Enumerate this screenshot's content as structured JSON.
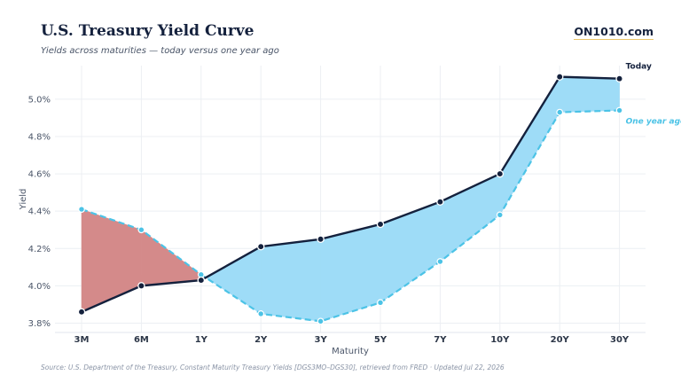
{
  "header": {
    "title": "U.S. Treasury Yield Curve",
    "subtitle": "Yields across maturities — today versus one year ago",
    "brand": "ON1010.com"
  },
  "footer": {
    "source": "Source: U.S. Department of the Treasury, Constant Maturity Treasury Yields [DGS3MO–DGS30], retrieved from FRED · Updated Jul 22, 2026"
  },
  "chart_data": {
    "type": "line",
    "xlabel": "Maturity",
    "ylabel": "Yield",
    "categories": [
      "3M",
      "6M",
      "1Y",
      "2Y",
      "3Y",
      "5Y",
      "7Y",
      "10Y",
      "20Y",
      "30Y"
    ],
    "yticks": [
      "3.8%",
      "4.0%",
      "4.2%",
      "4.4%",
      "4.6%",
      "4.8%",
      "5.0%"
    ],
    "ylim": [
      3.75,
      5.18
    ],
    "grid": true,
    "series": [
      {
        "name": "Today",
        "values": [
          3.86,
          4.0,
          4.03,
          4.21,
          4.25,
          4.33,
          4.45,
          4.6,
          5.12,
          5.11
        ],
        "color": "#14213d",
        "style": "solid"
      },
      {
        "name": "One year ago",
        "values": [
          4.41,
          4.3,
          4.06,
          3.85,
          3.81,
          3.91,
          4.13,
          4.38,
          4.93,
          4.94
        ],
        "color": "#4cc3e6",
        "style": "dashed"
      }
    ],
    "fill_colors": {
      "inverted": "#d48a8a",
      "normal": "#9edcf7"
    }
  }
}
